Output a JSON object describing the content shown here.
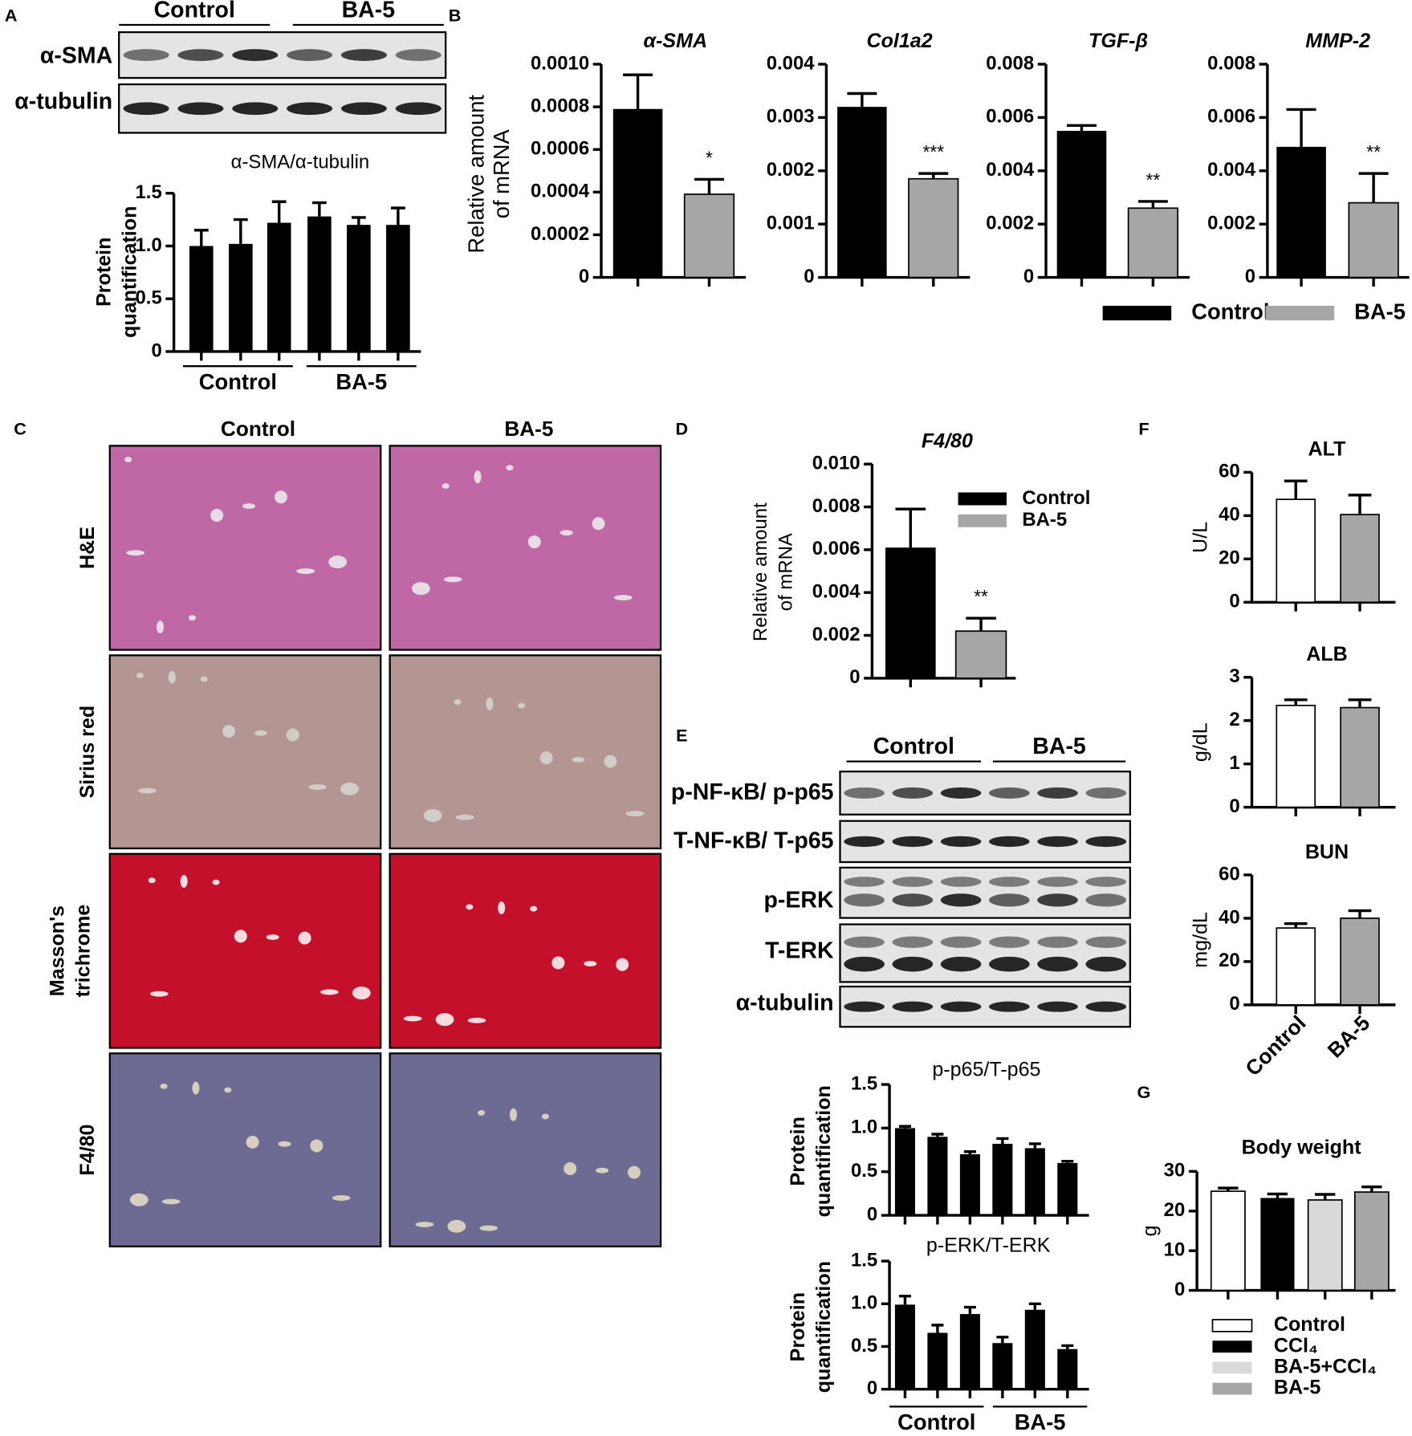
{
  "panel_labels": [
    "A",
    "B",
    "C",
    "D",
    "E",
    "F",
    "G"
  ],
  "blot_A": {
    "groups": [
      "Control",
      "BA-5"
    ],
    "rows": [
      "α-SMA",
      "α-tubulin"
    ]
  },
  "histology": {
    "columns": [
      "Control",
      "BA-5"
    ],
    "rows": [
      "H&E",
      "Sirius red",
      [
        "Masson's",
        "trichrome"
      ],
      "F4/80"
    ]
  },
  "blot_E": {
    "groups": [
      "Control",
      "BA-5"
    ],
    "rows": [
      "p-NF-κB/ p-p65",
      "T-NF-κB/ T-p65",
      "p-ERK",
      "T-ERK",
      "α-tubulin"
    ]
  },
  "chart_data": [
    {
      "type": "bar",
      "title": "α-SMA/α-tubulin",
      "ylabel": [
        "Protein",
        "quantification"
      ],
      "categories": [
        null,
        null,
        null,
        null,
        null,
        null
      ],
      "values": [
        1.0,
        1.02,
        1.22,
        1.28,
        1.2,
        1.2
      ],
      "errors": [
        0.15,
        0.23,
        0.2,
        0.13,
        0.07,
        0.16
      ],
      "colors": [
        "#000000",
        "#000000",
        "#000000",
        "#000000",
        "#000000",
        "#000000"
      ],
      "ylim": [
        0,
        1.5
      ],
      "yticks": [
        0,
        0.5,
        {
          "value": 1,
          "label": "1.0"
        },
        1.5
      ],
      "group_labels": [
        "Control",
        "BA-5"
      ]
    },
    {
      "type": "bar",
      "title": "α-SMA",
      "ylabel": [
        "Relative amount",
        "of mRNA"
      ],
      "categories": [
        null,
        null
      ],
      "values": [
        0.00079,
        0.00039
      ],
      "errors": [
        0.00016,
        7e-05
      ],
      "colors": [
        "#000000",
        "#a6a6a6"
      ],
      "annotations": [
        null,
        "*"
      ],
      "ylim": [
        0,
        0.001
      ],
      "yticks": [
        0,
        0.0002,
        0.0004,
        0.0006,
        0.0008,
        {
          "value": 0.001,
          "label": "0.0010"
        }
      ]
    },
    {
      "type": "bar",
      "title": "Col1a2",
      "categories": [
        null,
        null
      ],
      "values": [
        0.0032,
        0.00185
      ],
      "errors": [
        0.00025,
        0.0001
      ],
      "colors": [
        "#000000",
        "#a6a6a6"
      ],
      "annotations": [
        null,
        "***"
      ],
      "ylim": [
        0,
        0.004
      ],
      "yticks": [
        0,
        0.001,
        0.002,
        0.003,
        0.004
      ]
    },
    {
      "type": "bar",
      "title": "TGF-β",
      "categories": [
        null,
        null
      ],
      "values": [
        0.0055,
        0.0026
      ],
      "errors": [
        0.0002,
        0.00025
      ],
      "colors": [
        "#000000",
        "#a6a6a6"
      ],
      "annotations": [
        null,
        "**"
      ],
      "ylim": [
        0,
        0.008
      ],
      "yticks": [
        0,
        0.002,
        0.004,
        0.006,
        0.008
      ]
    },
    {
      "type": "bar",
      "title": "MMP-2",
      "categories": [
        null,
        null
      ],
      "values": [
        0.0049,
        0.0028
      ],
      "errors": [
        0.0014,
        0.0011
      ],
      "colors": [
        "#000000",
        "#a6a6a6"
      ],
      "annotations": [
        null,
        "**"
      ],
      "ylim": [
        0,
        0.008
      ],
      "yticks": [
        0,
        0.002,
        0.004,
        0.006,
        0.008
      ],
      "legend": {
        "position": "bottom",
        "entries": [
          {
            "name": "Control",
            "color": "#000000"
          },
          {
            "name": "BA-5",
            "color": "#a6a6a6"
          }
        ]
      }
    },
    {
      "type": "bar",
      "title": "F4/80",
      "ylabel": [
        "Relative amount",
        "of mRNA"
      ],
      "categories": [
        null,
        null
      ],
      "values": [
        0.0061,
        0.0022
      ],
      "errors": [
        0.0018,
        0.0006
      ],
      "colors": [
        "#000000",
        "#a6a6a6"
      ],
      "annotations": [
        null,
        "**"
      ],
      "ylim": [
        0,
        0.01
      ],
      "yticks": [
        0,
        0.002,
        0.004,
        0.006,
        0.008,
        {
          "value": 0.01,
          "label": "0.010"
        }
      ],
      "legend": {
        "position": "upper right",
        "entries": [
          {
            "name": "Control",
            "color": "#000000"
          },
          {
            "name": "BA-5",
            "color": "#a6a6a6"
          }
        ]
      }
    },
    {
      "type": "bar",
      "title": "p-p65/T-p65",
      "ylabel": [
        "Protein",
        "quantification"
      ],
      "categories": [
        null,
        null,
        null,
        null,
        null,
        null
      ],
      "values": [
        1.0,
        0.9,
        0.7,
        0.82,
        0.77,
        0.6
      ],
      "errors": [
        0.02,
        0.03,
        0.03,
        0.06,
        0.05,
        0.02
      ],
      "colors": [
        "#000000",
        "#000000",
        "#000000",
        "#000000",
        "#000000",
        "#000000"
      ],
      "ylim": [
        0,
        1.5
      ],
      "yticks": [
        0,
        0.5,
        {
          "value": 1,
          "label": "1.0"
        },
        1.5
      ]
    },
    {
      "type": "bar",
      "title": "p-ERK/T-ERK",
      "ylabel": [
        "Protein",
        "quantification"
      ],
      "categories": [
        null,
        null,
        null,
        null,
        null,
        null
      ],
      "values": [
        0.99,
        0.66,
        0.88,
        0.54,
        0.93,
        0.47
      ],
      "errors": [
        0.1,
        0.09,
        0.08,
        0.07,
        0.07,
        0.04
      ],
      "colors": [
        "#000000",
        "#000000",
        "#000000",
        "#000000",
        "#000000",
        "#000000"
      ],
      "ylim": [
        0,
        1.5
      ],
      "yticks": [
        0,
        0.5,
        {
          "value": 1,
          "label": "1.0"
        },
        1.5
      ],
      "group_labels": [
        "Control",
        "BA-5"
      ]
    },
    {
      "type": "bar",
      "title": "ALT",
      "ylabel": [
        "U/L"
      ],
      "categories": [
        null,
        null
      ],
      "values": [
        47.5,
        40.5
      ],
      "errors": [
        8.5,
        9
      ],
      "colors": [
        "#ffffff",
        "#a6a6a6"
      ],
      "ylim": [
        0,
        60
      ],
      "yticks": [
        0,
        20,
        40,
        60
      ]
    },
    {
      "type": "bar",
      "title": "ALB",
      "ylabel": [
        "g/dL"
      ],
      "categories": [
        null,
        null
      ],
      "values": [
        2.35,
        2.3
      ],
      "errors": [
        0.13,
        0.18
      ],
      "colors": [
        "#ffffff",
        "#a6a6a6"
      ],
      "ylim": [
        0,
        3
      ],
      "yticks": [
        0,
        1,
        2,
        3
      ]
    },
    {
      "type": "bar",
      "title": "BUN",
      "ylabel": [
        "mg/dL"
      ],
      "categories": [
        "Control",
        "BA-5"
      ],
      "values": [
        35.5,
        40
      ],
      "errors": [
        2,
        3.5
      ],
      "colors": [
        "#ffffff",
        "#a6a6a6"
      ],
      "ylim": [
        0,
        60
      ],
      "yticks": [
        0,
        20,
        40,
        60
      ]
    },
    {
      "type": "bar",
      "title": "Body weight",
      "ylabel": [
        "g"
      ],
      "categories": [
        null,
        null,
        null,
        null
      ],
      "values": [
        25,
        23.3,
        22.8,
        24.8
      ],
      "errors": [
        0.8,
        1,
        1.4,
        1.3
      ],
      "colors": [
        "#ffffff",
        "#000000",
        "#d9d9d9",
        "#a6a6a6"
      ],
      "ylim": [
        0,
        30
      ],
      "yticks": [
        0,
        10,
        20,
        30
      ],
      "legend": {
        "position": "bottom",
        "entries": [
          {
            "name": "Control",
            "color": "#ffffff"
          },
          {
            "name": "CCl₄",
            "color": "#000000"
          },
          {
            "name": "BA-5+CCl₄",
            "color": "#d9d9d9"
          },
          {
            "name": "BA-5",
            "color": "#a6a6a6"
          }
        ]
      }
    }
  ]
}
